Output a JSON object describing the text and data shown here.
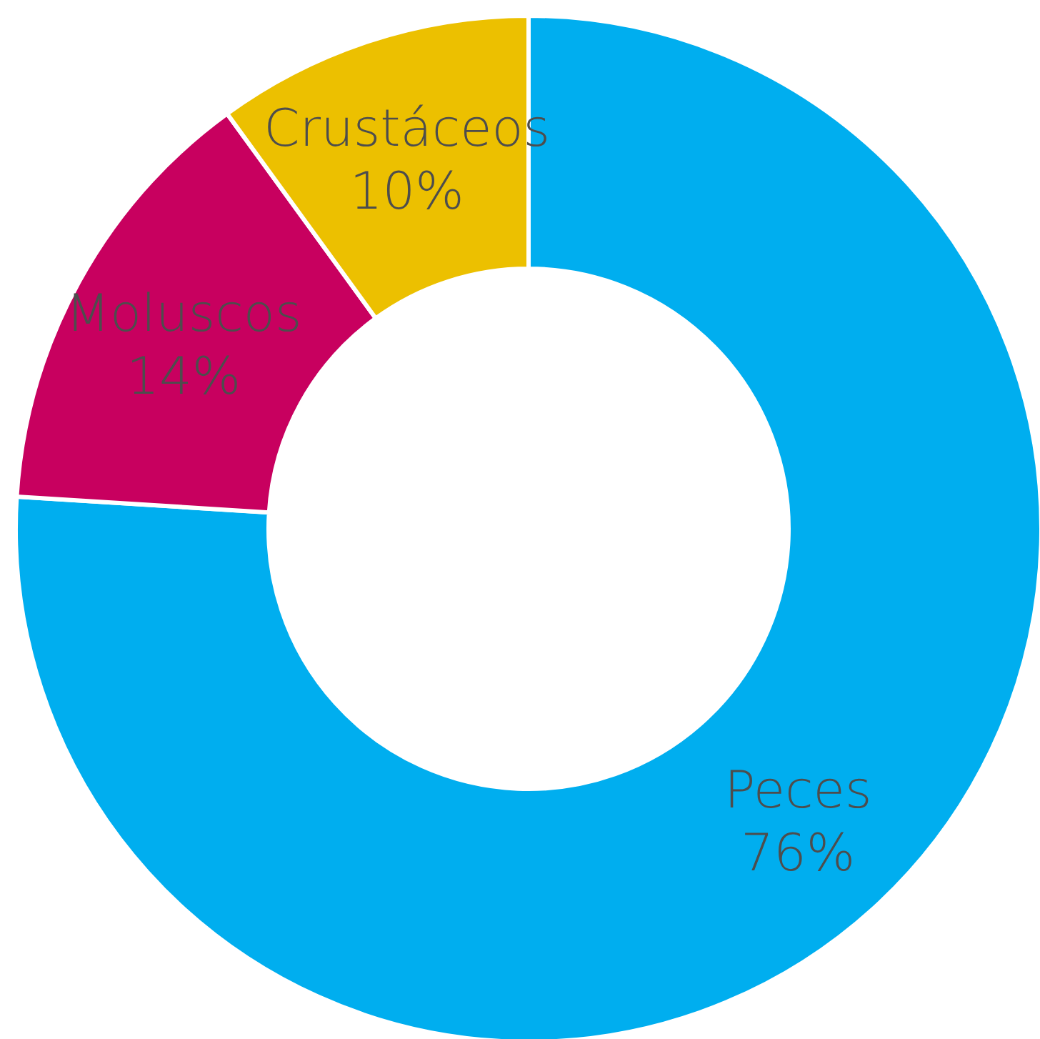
{
  "chart_data": {
    "type": "donut",
    "categories": [
      "Peces",
      "Moluscos",
      "Crustáceos"
    ],
    "values": [
      76,
      14,
      10
    ],
    "colors": [
      "#00aeef",
      "#c8005f",
      "#ecc000"
    ],
    "value_labels": [
      "76%",
      "14%",
      "10%"
    ],
    "legend": false
  }
}
